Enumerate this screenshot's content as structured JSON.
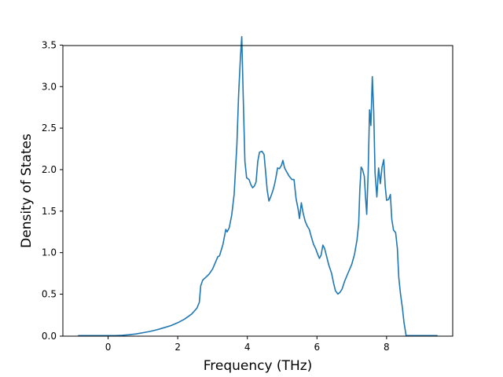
{
  "chart_data": {
    "type": "line",
    "title": "",
    "xlabel": "Frequency (THz)",
    "ylabel": "Density of States",
    "xlim": [
      -1.3,
      9.9
    ],
    "ylim": [
      0.0,
      3.5
    ],
    "xticks": [
      0,
      2,
      4,
      6,
      8
    ],
    "yticks": [
      0.0,
      0.5,
      1.0,
      1.5,
      2.0,
      2.5,
      3.0,
      3.5
    ],
    "xtick_labels": [
      "0",
      "2",
      "4",
      "6",
      "8"
    ],
    "ytick_labels": [
      "0.0",
      "0.5",
      "1.0",
      "1.5",
      "2.0",
      "2.5",
      "3.0",
      "3.5"
    ],
    "grid": false,
    "legend": "none",
    "series": [
      {
        "color": "#1f77b4",
        "points": [
          [
            -0.85,
            0.0
          ],
          [
            0.0,
            0.0
          ],
          [
            0.2,
            0.0
          ],
          [
            0.4,
            0.004
          ],
          [
            0.6,
            0.01
          ],
          [
            0.8,
            0.02
          ],
          [
            1.0,
            0.035
          ],
          [
            1.2,
            0.05
          ],
          [
            1.4,
            0.07
          ],
          [
            1.6,
            0.095
          ],
          [
            1.8,
            0.12
          ],
          [
            2.0,
            0.155
          ],
          [
            2.2,
            0.2
          ],
          [
            2.4,
            0.26
          ],
          [
            2.55,
            0.33
          ],
          [
            2.62,
            0.4
          ],
          [
            2.66,
            0.6
          ],
          [
            2.72,
            0.67
          ],
          [
            2.8,
            0.7
          ],
          [
            2.9,
            0.74
          ],
          [
            3.0,
            0.8
          ],
          [
            3.1,
            0.9
          ],
          [
            3.15,
            0.95
          ],
          [
            3.2,
            0.96
          ],
          [
            3.3,
            1.1
          ],
          [
            3.38,
            1.28
          ],
          [
            3.42,
            1.25
          ],
          [
            3.48,
            1.3
          ],
          [
            3.55,
            1.45
          ],
          [
            3.62,
            1.7
          ],
          [
            3.7,
            2.3
          ],
          [
            3.75,
            2.9
          ],
          [
            3.8,
            3.35
          ],
          [
            3.84,
            3.6
          ],
          [
            3.88,
            2.9
          ],
          [
            3.93,
            2.1
          ],
          [
            3.98,
            1.9
          ],
          [
            4.05,
            1.88
          ],
          [
            4.1,
            1.82
          ],
          [
            4.15,
            1.78
          ],
          [
            4.2,
            1.8
          ],
          [
            4.25,
            1.85
          ],
          [
            4.3,
            2.1
          ],
          [
            4.35,
            2.21
          ],
          [
            4.42,
            2.22
          ],
          [
            4.48,
            2.18
          ],
          [
            4.52,
            2.0
          ],
          [
            4.57,
            1.75
          ],
          [
            4.62,
            1.62
          ],
          [
            4.68,
            1.68
          ],
          [
            4.73,
            1.74
          ],
          [
            4.78,
            1.82
          ],
          [
            4.82,
            1.9
          ],
          [
            4.87,
            2.02
          ],
          [
            4.92,
            2.01
          ],
          [
            4.98,
            2.05
          ],
          [
            5.02,
            2.11
          ],
          [
            5.07,
            2.02
          ],
          [
            5.12,
            1.98
          ],
          [
            5.2,
            1.92
          ],
          [
            5.28,
            1.88
          ],
          [
            5.34,
            1.88
          ],
          [
            5.4,
            1.65
          ],
          [
            5.46,
            1.52
          ],
          [
            5.5,
            1.41
          ],
          [
            5.55,
            1.6
          ],
          [
            5.6,
            1.48
          ],
          [
            5.66,
            1.38
          ],
          [
            5.72,
            1.32
          ],
          [
            5.78,
            1.28
          ],
          [
            5.83,
            1.2
          ],
          [
            5.9,
            1.1
          ],
          [
            5.96,
            1.05
          ],
          [
            6.02,
            0.98
          ],
          [
            6.07,
            0.93
          ],
          [
            6.12,
            0.97
          ],
          [
            6.17,
            1.09
          ],
          [
            6.22,
            1.05
          ],
          [
            6.28,
            0.95
          ],
          [
            6.34,
            0.85
          ],
          [
            6.42,
            0.75
          ],
          [
            6.48,
            0.63
          ],
          [
            6.53,
            0.54
          ],
          [
            6.6,
            0.5
          ],
          [
            6.66,
            0.52
          ],
          [
            6.72,
            0.56
          ],
          [
            6.8,
            0.66
          ],
          [
            6.9,
            0.76
          ],
          [
            7.0,
            0.86
          ],
          [
            7.08,
            0.98
          ],
          [
            7.15,
            1.15
          ],
          [
            7.2,
            1.35
          ],
          [
            7.23,
            1.75
          ],
          [
            7.27,
            2.03
          ],
          [
            7.31,
            2.0
          ],
          [
            7.36,
            1.92
          ],
          [
            7.4,
            1.64
          ],
          [
            7.43,
            1.46
          ],
          [
            7.47,
            1.95
          ],
          [
            7.51,
            2.72
          ],
          [
            7.55,
            2.53
          ],
          [
            7.59,
            3.12
          ],
          [
            7.63,
            2.7
          ],
          [
            7.67,
            1.96
          ],
          [
            7.72,
            1.67
          ],
          [
            7.77,
            2.02
          ],
          [
            7.82,
            1.83
          ],
          [
            7.87,
            2.03
          ],
          [
            7.92,
            2.12
          ],
          [
            7.96,
            1.8
          ],
          [
            8.0,
            1.63
          ],
          [
            8.06,
            1.64
          ],
          [
            8.11,
            1.7
          ],
          [
            8.15,
            1.4
          ],
          [
            8.2,
            1.27
          ],
          [
            8.26,
            1.24
          ],
          [
            8.31,
            1.05
          ],
          [
            8.35,
            0.7
          ],
          [
            8.4,
            0.5
          ],
          [
            8.46,
            0.32
          ],
          [
            8.5,
            0.16
          ],
          [
            8.56,
            0.0
          ],
          [
            9.0,
            0.0
          ],
          [
            9.45,
            0.0
          ]
        ]
      }
    ]
  }
}
